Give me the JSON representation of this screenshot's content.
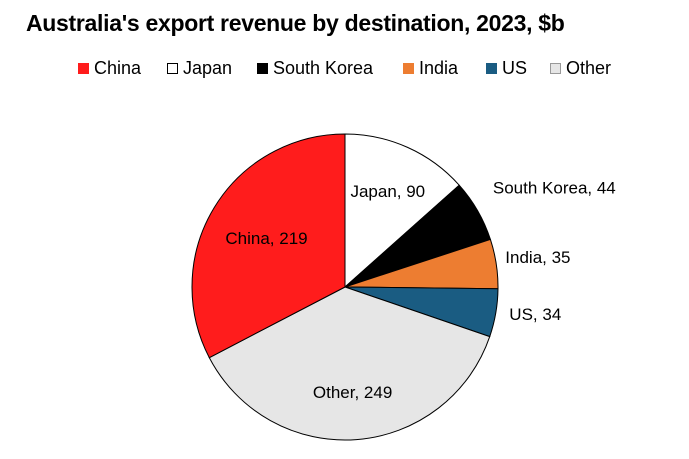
{
  "chart_data": {
    "type": "pie",
    "title": "Australia's export revenue by destination, 2023, $b",
    "categories": [
      "China",
      "Japan",
      "South Korea",
      "India",
      "US",
      "Other"
    ],
    "values": [
      219,
      90,
      44,
      35,
      34,
      249
    ],
    "labels": [
      "China, 219",
      "Japan, 90",
      "South Korea, 44",
      "India, 35",
      "US, 34",
      "Other, 249"
    ],
    "colors": [
      "#ff1c1c",
      "#ffffff",
      "#000000",
      "#ed7d31",
      "#1a5c82",
      "#e6e6e6"
    ],
    "start_order": [
      "Japan",
      "South Korea",
      "India",
      "US",
      "Other",
      "China"
    ],
    "legend_position": "top"
  }
}
